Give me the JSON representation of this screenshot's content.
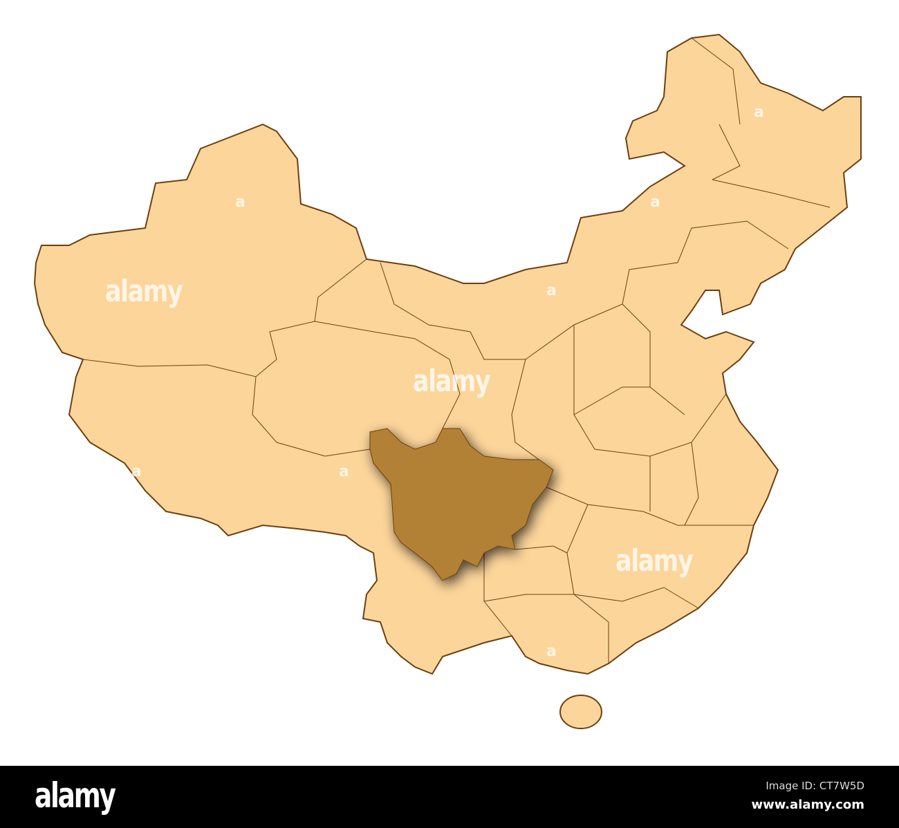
{
  "map": {
    "country": "China",
    "highlighted_region": "Sichuan",
    "colors": {
      "land": "#fcd59a",
      "border": "#6b3f10",
      "highlight": "#b38134",
      "background": "#ffffff"
    }
  },
  "watermarks": [
    "alamy",
    "a"
  ],
  "footer": {
    "logo": "alamy",
    "image_id": "Image ID: CT7W5D",
    "url": "www.alamy.com"
  }
}
